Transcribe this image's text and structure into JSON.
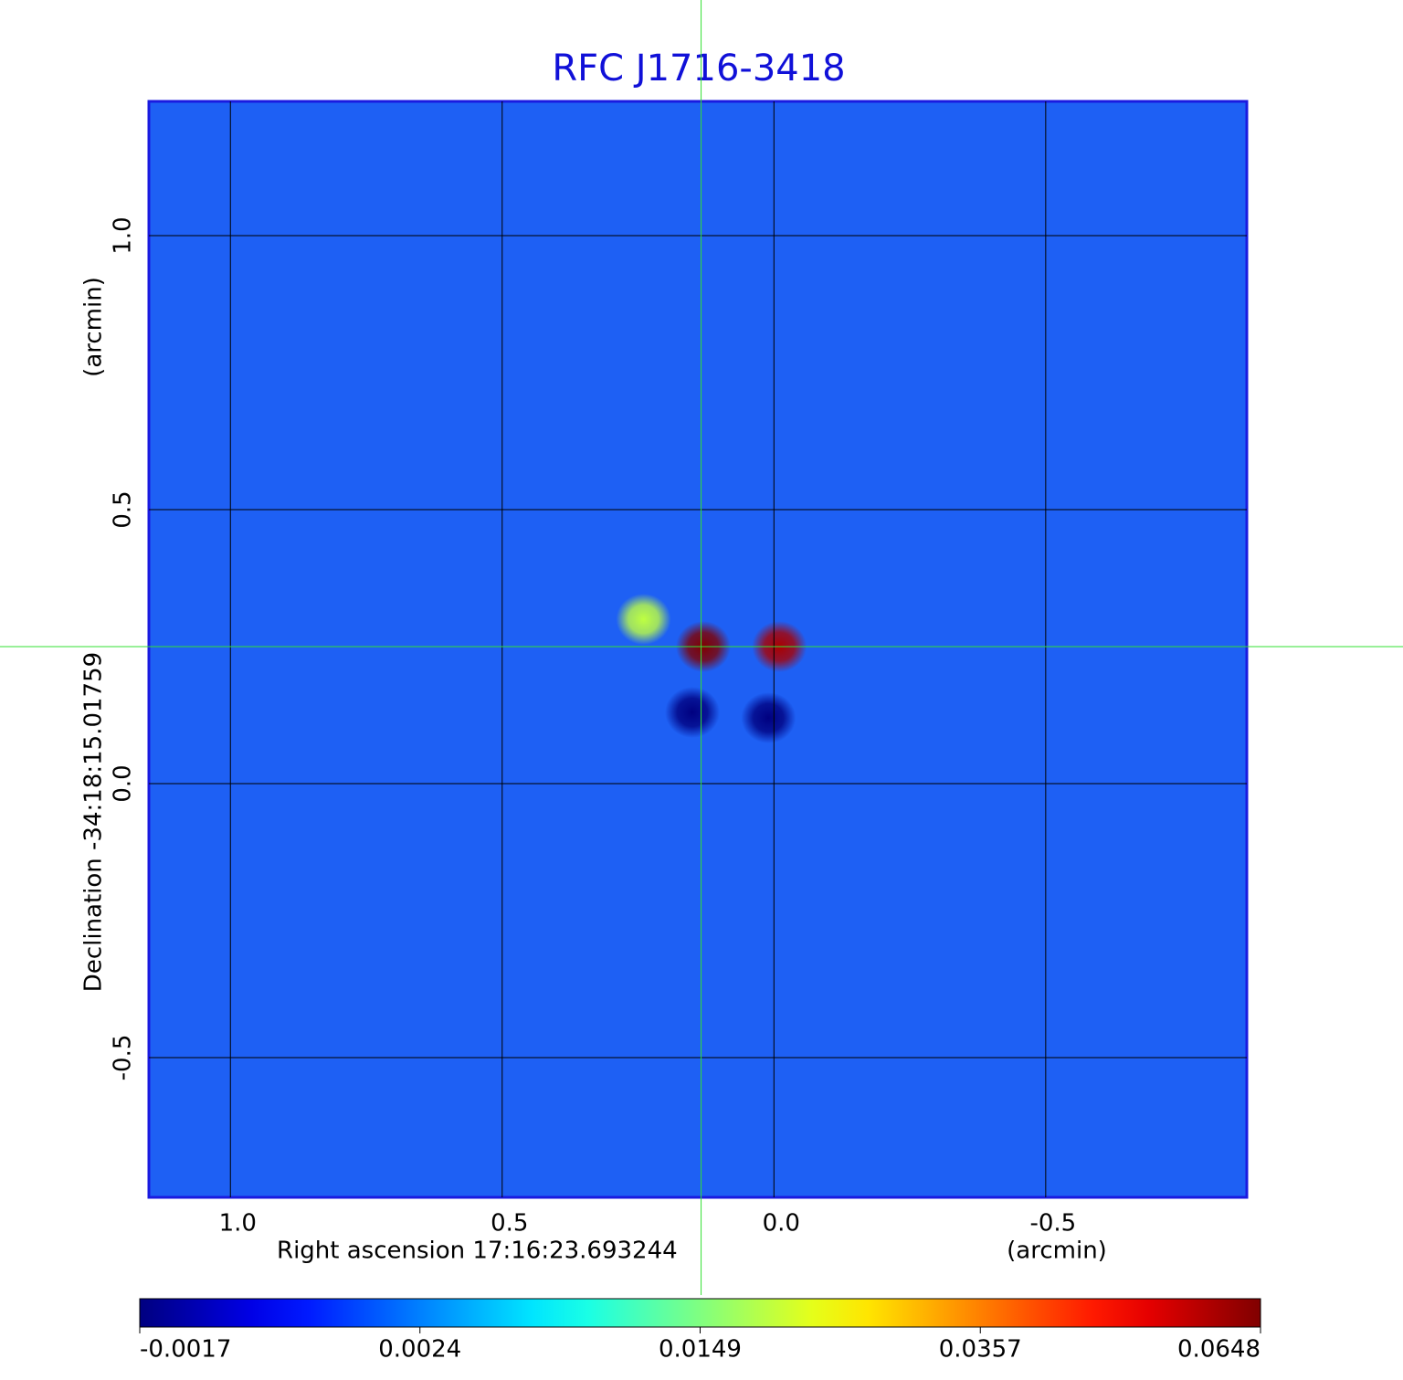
{
  "chart_data": {
    "type": "image",
    "title": "RFC J1716-3418",
    "x_label": "Right ascension  17:16:23.693244",
    "x_unit": "(arcmin)",
    "y_label": "Declination  -34:18:15.01759",
    "y_unit": "(arcmin)",
    "xlim": [
      1.15,
      -0.87
    ],
    "ylim": [
      -0.755,
      1.245
    ],
    "xticks": [
      {
        "value": 1,
        "label": "1.0"
      },
      0.5,
      {
        "value": 0,
        "label": "0.0"
      },
      -0.5
    ],
    "yticks": [
      {
        "value": 1,
        "label": "1.0"
      },
      0.5,
      {
        "value": 0,
        "label": "0.0"
      },
      -0.5
    ],
    "grid": true,
    "colormap": "jet",
    "colorbar_ticks": [
      -0.0017,
      0.0024,
      0.0149,
      0.0357,
      0.0648
    ],
    "crosshair": {
      "x": 0.134,
      "y": 0.25
    },
    "sources": [
      {
        "x": 0.24,
        "y": 0.3,
        "value": 0.02
      },
      {
        "x": 0.13,
        "y": 0.25,
        "value": 0.0648
      },
      {
        "x": -0.01,
        "y": 0.25,
        "value": 0.06
      },
      {
        "x": 0.15,
        "y": 0.13,
        "value": -0.0017
      },
      {
        "x": 0.01,
        "y": 0.12,
        "value": -0.0017
      }
    ]
  }
}
